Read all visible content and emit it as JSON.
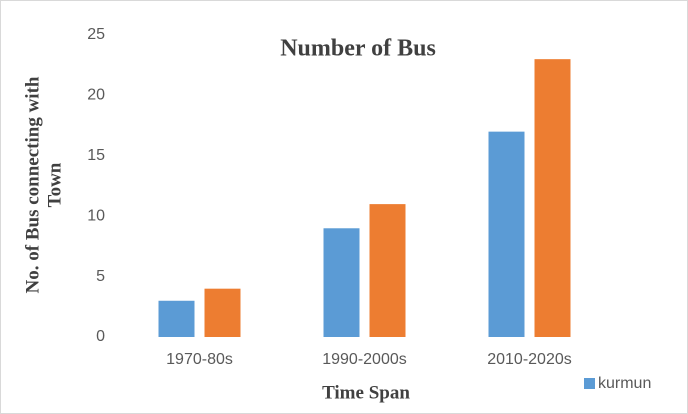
{
  "chart_data": {
    "type": "bar",
    "title": "Number of Bus",
    "xlabel": "Time Span",
    "ylabel": [
      "No. of Bus connecting with",
      "Town"
    ],
    "categories": [
      "1970-80s",
      "1990-2000s",
      "2010-2020s"
    ],
    "series": [
      {
        "name": "kurmun",
        "color": "#5b9bd5",
        "values": [
          3,
          9,
          17
        ]
      },
      {
        "color": "#ed7d31",
        "values": [
          4,
          11,
          23
        ]
      }
    ],
    "ylim": [
      0,
      25
    ],
    "yticks": [
      0,
      5,
      10,
      15,
      20,
      25
    ],
    "grid": false,
    "legend": "bottom-right"
  }
}
